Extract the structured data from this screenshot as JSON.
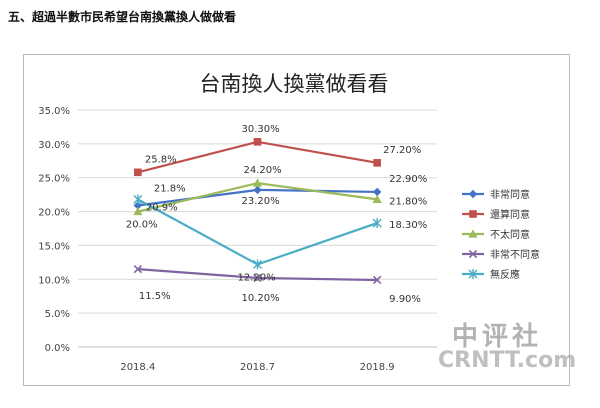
{
  "page": {
    "heading": "五、超過半數市民希望台南換黨換人做做看"
  },
  "watermark": {
    "cn": "中评社",
    "en": "CRNTT.com"
  },
  "chart_data": {
    "type": "line",
    "title": "台南換人換黨做看看",
    "categories": [
      "2018.4",
      "2018.7",
      "2018.9"
    ],
    "ylim": [
      0,
      35
    ],
    "yticks": [
      "0.0%",
      "5.0%",
      "10.0%",
      "15.0%",
      "20.0%",
      "25.0%",
      "30.0%",
      "35.0%"
    ],
    "grid": true,
    "legend_position": "right",
    "series": [
      {
        "name": "非常同意",
        "color": "#4472c4",
        "marker": "diamond",
        "values": [
          20.9,
          23.2,
          22.9
        ],
        "labels": [
          "20.9%",
          "23.20%",
          "22.90%"
        ]
      },
      {
        "name": "還算同意",
        "color": "#c0504d",
        "marker": "square",
        "values": [
          25.8,
          30.3,
          27.2
        ],
        "labels": [
          "25.8%",
          "30.30%",
          "27.20%"
        ]
      },
      {
        "name": "不太同意",
        "color": "#9bbb59",
        "marker": "triangle",
        "values": [
          20.0,
          24.2,
          21.8
        ],
        "labels": [
          "20.0%",
          "24.20%",
          "21.80%"
        ]
      },
      {
        "name": "非常不同意",
        "color": "#8064a2",
        "marker": "x",
        "values": [
          11.5,
          10.2,
          9.9
        ],
        "labels": [
          "11.5%",
          "10.20%",
          "9.90%"
        ]
      },
      {
        "name": "無反應",
        "color": "#4bacc6",
        "marker": "star",
        "values": [
          21.8,
          12.2,
          18.3
        ],
        "labels": [
          "21.8%",
          "12.20%",
          "18.30%"
        ]
      }
    ]
  }
}
